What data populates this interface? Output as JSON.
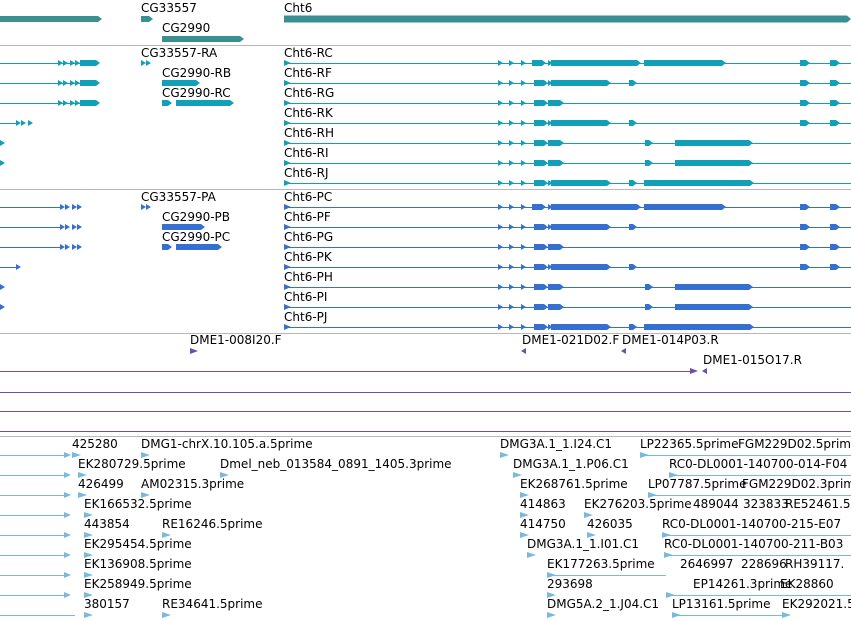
{
  "colors": {
    "gene": "#3a9090",
    "transcript": "#12a0b8",
    "protein": "#3570d0",
    "clone": "#6a50a8",
    "est": "#7ab8e0",
    "divider": "#b8b8b8"
  },
  "gene_track": [
    {
      "label": "CG33557"
    },
    {
      "label": "CG2990"
    },
    {
      "label": "Cht6"
    }
  ],
  "transcript_track": [
    {
      "label": "CG33557-RA"
    },
    {
      "label": "CG2990-RB"
    },
    {
      "label": "CG2990-RC"
    },
    {
      "label": "Cht6-RC"
    },
    {
      "label": "Cht6-RF"
    },
    {
      "label": "Cht6-RG"
    },
    {
      "label": "Cht6-RK"
    },
    {
      "label": "Cht6-RH"
    },
    {
      "label": "Cht6-RI"
    },
    {
      "label": "Cht6-RJ"
    }
  ],
  "protein_track": [
    {
      "label": "CG33557-PA"
    },
    {
      "label": "CG2990-PB"
    },
    {
      "label": "CG2990-PC"
    },
    {
      "label": "Cht6-PC"
    },
    {
      "label": "Cht6-PF"
    },
    {
      "label": "Cht6-PG"
    },
    {
      "label": "Cht6-PK"
    },
    {
      "label": "Cht6-PH"
    },
    {
      "label": "Cht6-PI"
    },
    {
      "label": "Cht6-PJ"
    }
  ],
  "clone_track": [
    {
      "label": "DME1-008I20.F"
    },
    {
      "label": "DME1-021D02.F"
    },
    {
      "label": "DME1-014P03.R"
    },
    {
      "label": "DME1-015O17.R"
    }
  ],
  "est_track": [
    {
      "label": "425280"
    },
    {
      "label": "DMG1-chrX.10.105.a.5prime"
    },
    {
      "label": "EK280729.5prime"
    },
    {
      "label": "Dmel_neb_013584_0891_1405.3prime"
    },
    {
      "label": "426499"
    },
    {
      "label": "AM02315.3prime"
    },
    {
      "label": "EK166532.5prime"
    },
    {
      "label": "443854"
    },
    {
      "label": "RE16246.5prime"
    },
    {
      "label": "EK295454.5prime"
    },
    {
      "label": "EK136908.5prime"
    },
    {
      "label": "EK258949.5prime"
    },
    {
      "label": "380157"
    },
    {
      "label": "RE34641.5prime"
    },
    {
      "label": "DMG3A.1_1.I24.C1"
    },
    {
      "label": "LP22365.5prime"
    },
    {
      "label": "FGM229D02.5prime"
    },
    {
      "label": "DMG3A.1_1.P06.C1"
    },
    {
      "label": "RC0-DL0001-140700-014-F04"
    },
    {
      "label": "EK268761.5prime"
    },
    {
      "label": "LP07787.5prime"
    },
    {
      "label": "FGM229D02.3prime"
    },
    {
      "label": "414863"
    },
    {
      "label": "EK276203.5prime"
    },
    {
      "label": "489044"
    },
    {
      "label": "323833"
    },
    {
      "label": "RE52461.5"
    },
    {
      "label": "414750"
    },
    {
      "label": "426035"
    },
    {
      "label": "RC0-DL0001-140700-215-E07"
    },
    {
      "label": "DMG3A.1_1.I01.C1"
    },
    {
      "label": "RC0-DL0001-140700-211-B03"
    },
    {
      "label": "EK177263.5prime"
    },
    {
      "label": "2646997"
    },
    {
      "label": "228696"
    },
    {
      "label": "RH39117."
    },
    {
      "label": "293698"
    },
    {
      "label": "EP14261.3prime"
    },
    {
      "label": "EK28860"
    },
    {
      "label": "DMG5A.2_1.J04.C1"
    },
    {
      "label": "LP13161.5prime"
    },
    {
      "label": "EK292021.5"
    }
  ]
}
